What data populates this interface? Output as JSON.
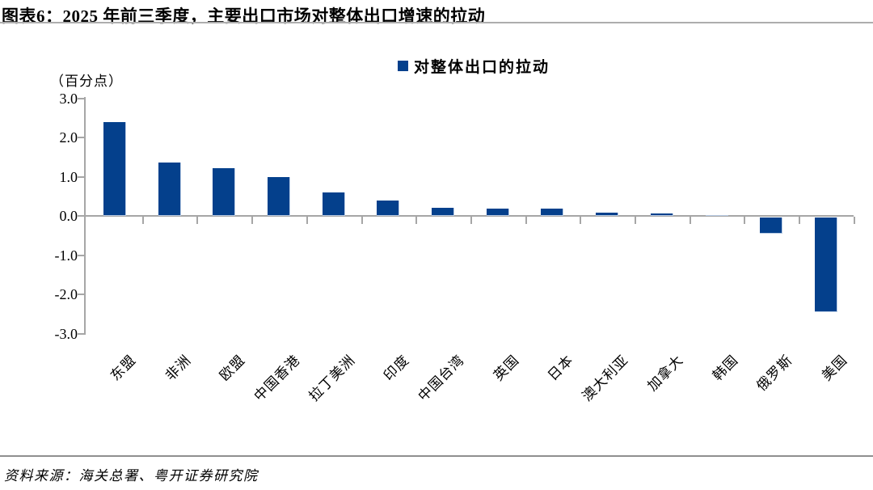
{
  "header": {
    "title": "图表6：2025 年前三季度，主要出口市场对整体出口增速的拉动"
  },
  "chart_data": {
    "type": "bar",
    "title": "2025 年前三季度，主要出口市场对整体出口增速的拉动",
    "legend": {
      "label": "对整体出口的拉动",
      "position": "top-center",
      "swatch_color": "#04408C"
    },
    "unit_label": "（百分点）",
    "categories": [
      "东盟",
      "非洲",
      "欧盟",
      "中国香港",
      "拉丁美洲",
      "印度",
      "中国台湾",
      "英国",
      "日本",
      "澳大利亚",
      "加拿大",
      "韩国",
      "俄罗斯",
      "美国"
    ],
    "values": [
      2.4,
      1.37,
      1.22,
      1.0,
      0.6,
      0.4,
      0.2,
      0.19,
      0.18,
      0.08,
      0.07,
      0.0,
      -0.41,
      -2.42
    ],
    "xlabel": "",
    "ylabel": "",
    "ylim": [
      -3.0,
      3.0
    ],
    "yticks": [
      3,
      2,
      1,
      0,
      -1,
      -2,
      -3
    ],
    "ytick_labels": [
      "3.0",
      "2.0",
      "1.0",
      "0.0",
      "-1.0",
      "-2.0",
      "-3.0"
    ],
    "grid": false,
    "bar_color": "#04408C",
    "bar_border_color": "#B8CBE4",
    "axis_color": "#A6A6A6"
  },
  "footer": {
    "source": "资料来源：海关总署、粤开证券研究院"
  }
}
